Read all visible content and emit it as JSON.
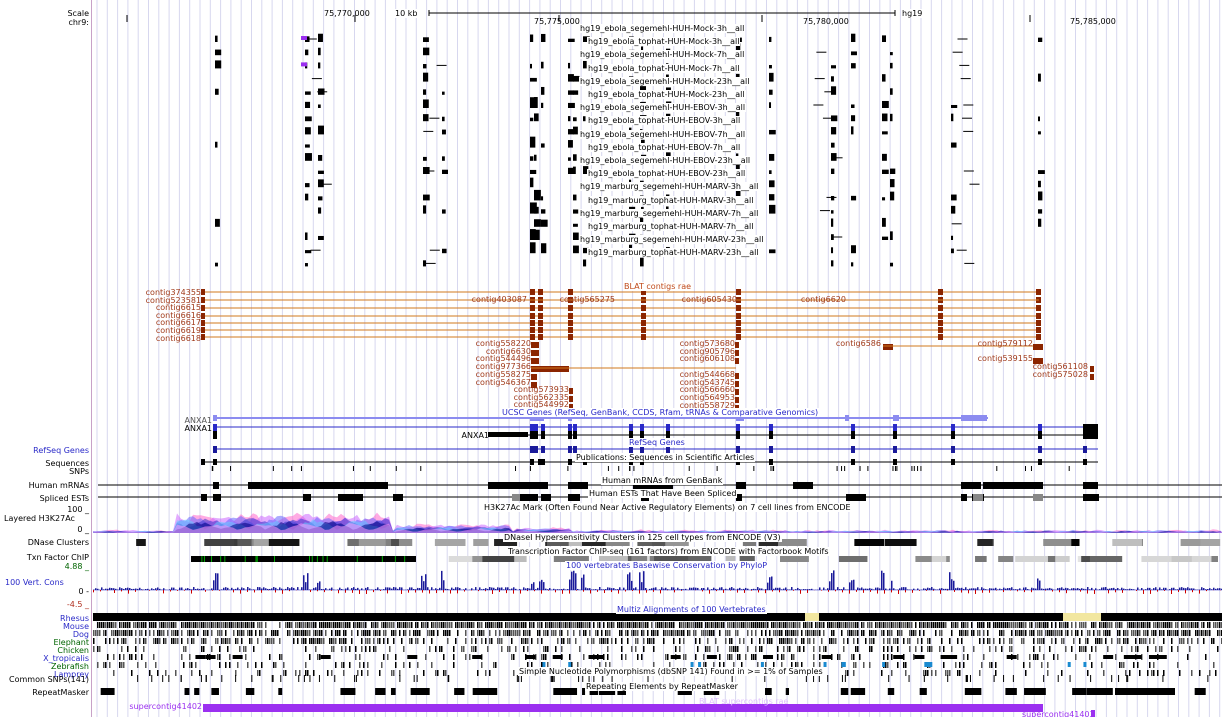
{
  "browser": {
    "assembly": "hg19",
    "chrom_label": "chr9:",
    "scale_label": "Scale",
    "scale_bar": "10 kb"
  },
  "ruler": {
    "ticks": [
      "75,770,000",
      "75,775,000",
      "75,780,000",
      "75,785,000"
    ]
  },
  "rna_tracks": {
    "titles": [
      "hg19_ebola_segemehl-HUH-Mock-3h__all",
      "hg19_ebola_tophat-HUH-Mock-3h__all",
      "hg19_ebola_segemehl-HUH-Mock-7h__all",
      "hg19_ebola_tophat-HUH-Mock-7h__all",
      "hg19_ebola_segemehl-HUH-Mock-23h__all",
      "hg19_ebola_tophat-HUH-Mock-23h__all",
      "hg19_ebola_segemehl-HUH-EBOV-3h__all",
      "hg19_ebola_tophat-HUH-EBOV-3h__all",
      "hg19_ebola_segemehl-HUH-EBOV-7h__all",
      "hg19_ebola_tophat-HUH-EBOV-7h__all",
      "hg19_ebola_segemehl-HUH-EBOV-23h__all",
      "hg19_ebola_tophat-HUH-EBOV-23h__all",
      "hg19_marburg_segemehl-HUH-MARV-3h__all",
      "hg19_marburg_tophat-HUH-MARV-3h__all",
      "hg19_marburg_segemehl-HUH-MARV-7h__all",
      "hg19_marburg_tophat-HUH-MARV-7h__all",
      "hg19_marburg_segemehl-HUH-MARV-23h__all",
      "hg19_marburg_tophat-HUH-MARV-23h__all"
    ]
  },
  "blat_contigs": {
    "title": "BLAT contigs rae",
    "left_labels": [
      "contig374355",
      "contig523581",
      "contig6615",
      "contig6616",
      "contig6617",
      "contig6619",
      "contig6618"
    ],
    "row1_labels": [
      "contig403087",
      "contig565275",
      "contig605430",
      "contig6620"
    ],
    "c1": [
      "contig558220",
      "contig6630",
      "contig544496",
      "contig977366",
      "contig558275",
      "contig546367"
    ],
    "c2": [
      "contig573933",
      "contig562335",
      "contig544992"
    ],
    "c3": [
      "contig573680",
      "contig905796",
      "contig606108"
    ],
    "c4": [
      "contig544668",
      "contig543745",
      "contig566660",
      "contig564953",
      "contig558729"
    ],
    "c5": [
      "contig6586"
    ],
    "c6": [
      "contig579112",
      "contig539155"
    ],
    "c7": [
      "contig561108",
      "contig575028"
    ]
  },
  "genes": {
    "ucsc_title": "UCSC Genes (RefSeq, GenBank, CCDS, Rfam, tRNAs & Comparative Genomics)",
    "labels": [
      "ANXA1",
      "ANXA1",
      "ANXA1"
    ],
    "refseq_title": "RefSeq Genes"
  },
  "tracks": {
    "publications_title": "Publications: Sequences in Scientific Articles",
    "mrna_title": "Human mRNAs from GenBank",
    "est_title": "Human ESTs That Have Been Spliced",
    "h3k27ac_title": "H3K27Ac Mark (Often Found Near Active Regulatory Elements) on 7 cell lines from ENCODE",
    "dnase_title": "DNaseI Hypersensitivity Clusters in 125 cell types from ENCODE (V3)",
    "txn_title": "Transcription Factor ChIP-seq (161 factors) from ENCODE with Factorbook Motifs",
    "cons_title": "100 vertebrates Basewise Conservation by PhyloP",
    "multiz_title": "Multiz Alignments of 100 Vertebrates",
    "snp_title": "Simple Nucleotide Polymorphisms (dbSNP 141) Found in >= 1% of Samples",
    "rmsk_title": "Repeating Elements by RepeatMasker",
    "supercontig_title": "BLAT supercontigs rae",
    "supercontig_labels": [
      "supercontig41402",
      "supercontig41403"
    ]
  },
  "side": {
    "refseq": "RefSeq Genes",
    "sequences": "Sequences",
    "snps": "SNPs",
    "mrnas": "Human mRNAs",
    "ests": "Spliced ESTs",
    "h3k27ac": "Layered H3K27Ac",
    "h3k_max": "100 _",
    "h3k_min": "0 _",
    "dnase": "DNase Clusters",
    "txn": "Txn Factor ChIP",
    "cons_max": "4.88 _",
    "cons_name": "100 Vert. Cons",
    "cons_zero": "0 -",
    "cons_min": "-4.5 _",
    "species": [
      "Rhesus",
      "Mouse",
      "Dog",
      "Elephant",
      "Chicken",
      "X_tropicalis",
      "Zebrafish",
      "Lamprey"
    ],
    "common_snps": "Common SNPs(141)",
    "repeatmasker": "RepeatMasker"
  },
  "colors": {
    "contig": "#8b2500",
    "contig_line": "#d0781e",
    "gene_blue": "#2a2ac8",
    "ucsc_light": "#8c8cf0",
    "supercontig": "#9b30f0",
    "grid": "#d7d7ef"
  }
}
